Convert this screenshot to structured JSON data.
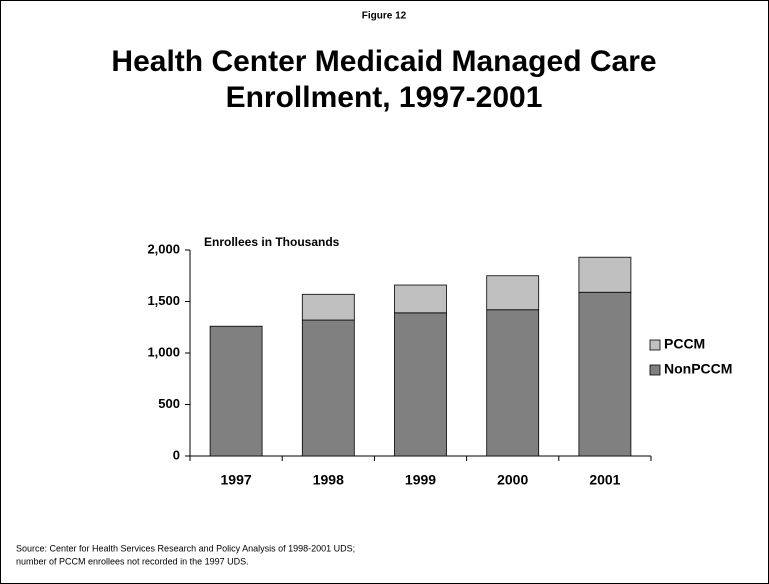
{
  "chart_data": {
    "type": "stacked_bar",
    "figure_label": "Figure 12",
    "title": "Health Center Medicaid Managed Care Enrollment, 1997-2001",
    "y_label": "Enrollees in Thousands",
    "categories": [
      "1997",
      "1998",
      "1999",
      "2000",
      "2001"
    ],
    "series": [
      {
        "name": "NonPCCM",
        "color": "#808080",
        "values": [
          1260,
          1320,
          1390,
          1420,
          1590
        ]
      },
      {
        "name": "PCCM",
        "color": "#c0c0c0",
        "values": [
          null,
          250,
          270,
          330,
          340
        ]
      }
    ],
    "ylim": [
      0,
      2000
    ],
    "yticks": [
      0,
      500,
      {
        "value": 1000,
        "label": "1,000"
      },
      {
        "value": 1500,
        "label": "1,500"
      },
      {
        "value": 2000,
        "label": "2,000"
      }
    ],
    "legend": "right",
    "source": [
      "Source: Center for Health Services Research and Policy Analysis of 1998-2001 UDS;",
      "number of PCCM enrollees not recorded in the 1997 UDS."
    ]
  }
}
